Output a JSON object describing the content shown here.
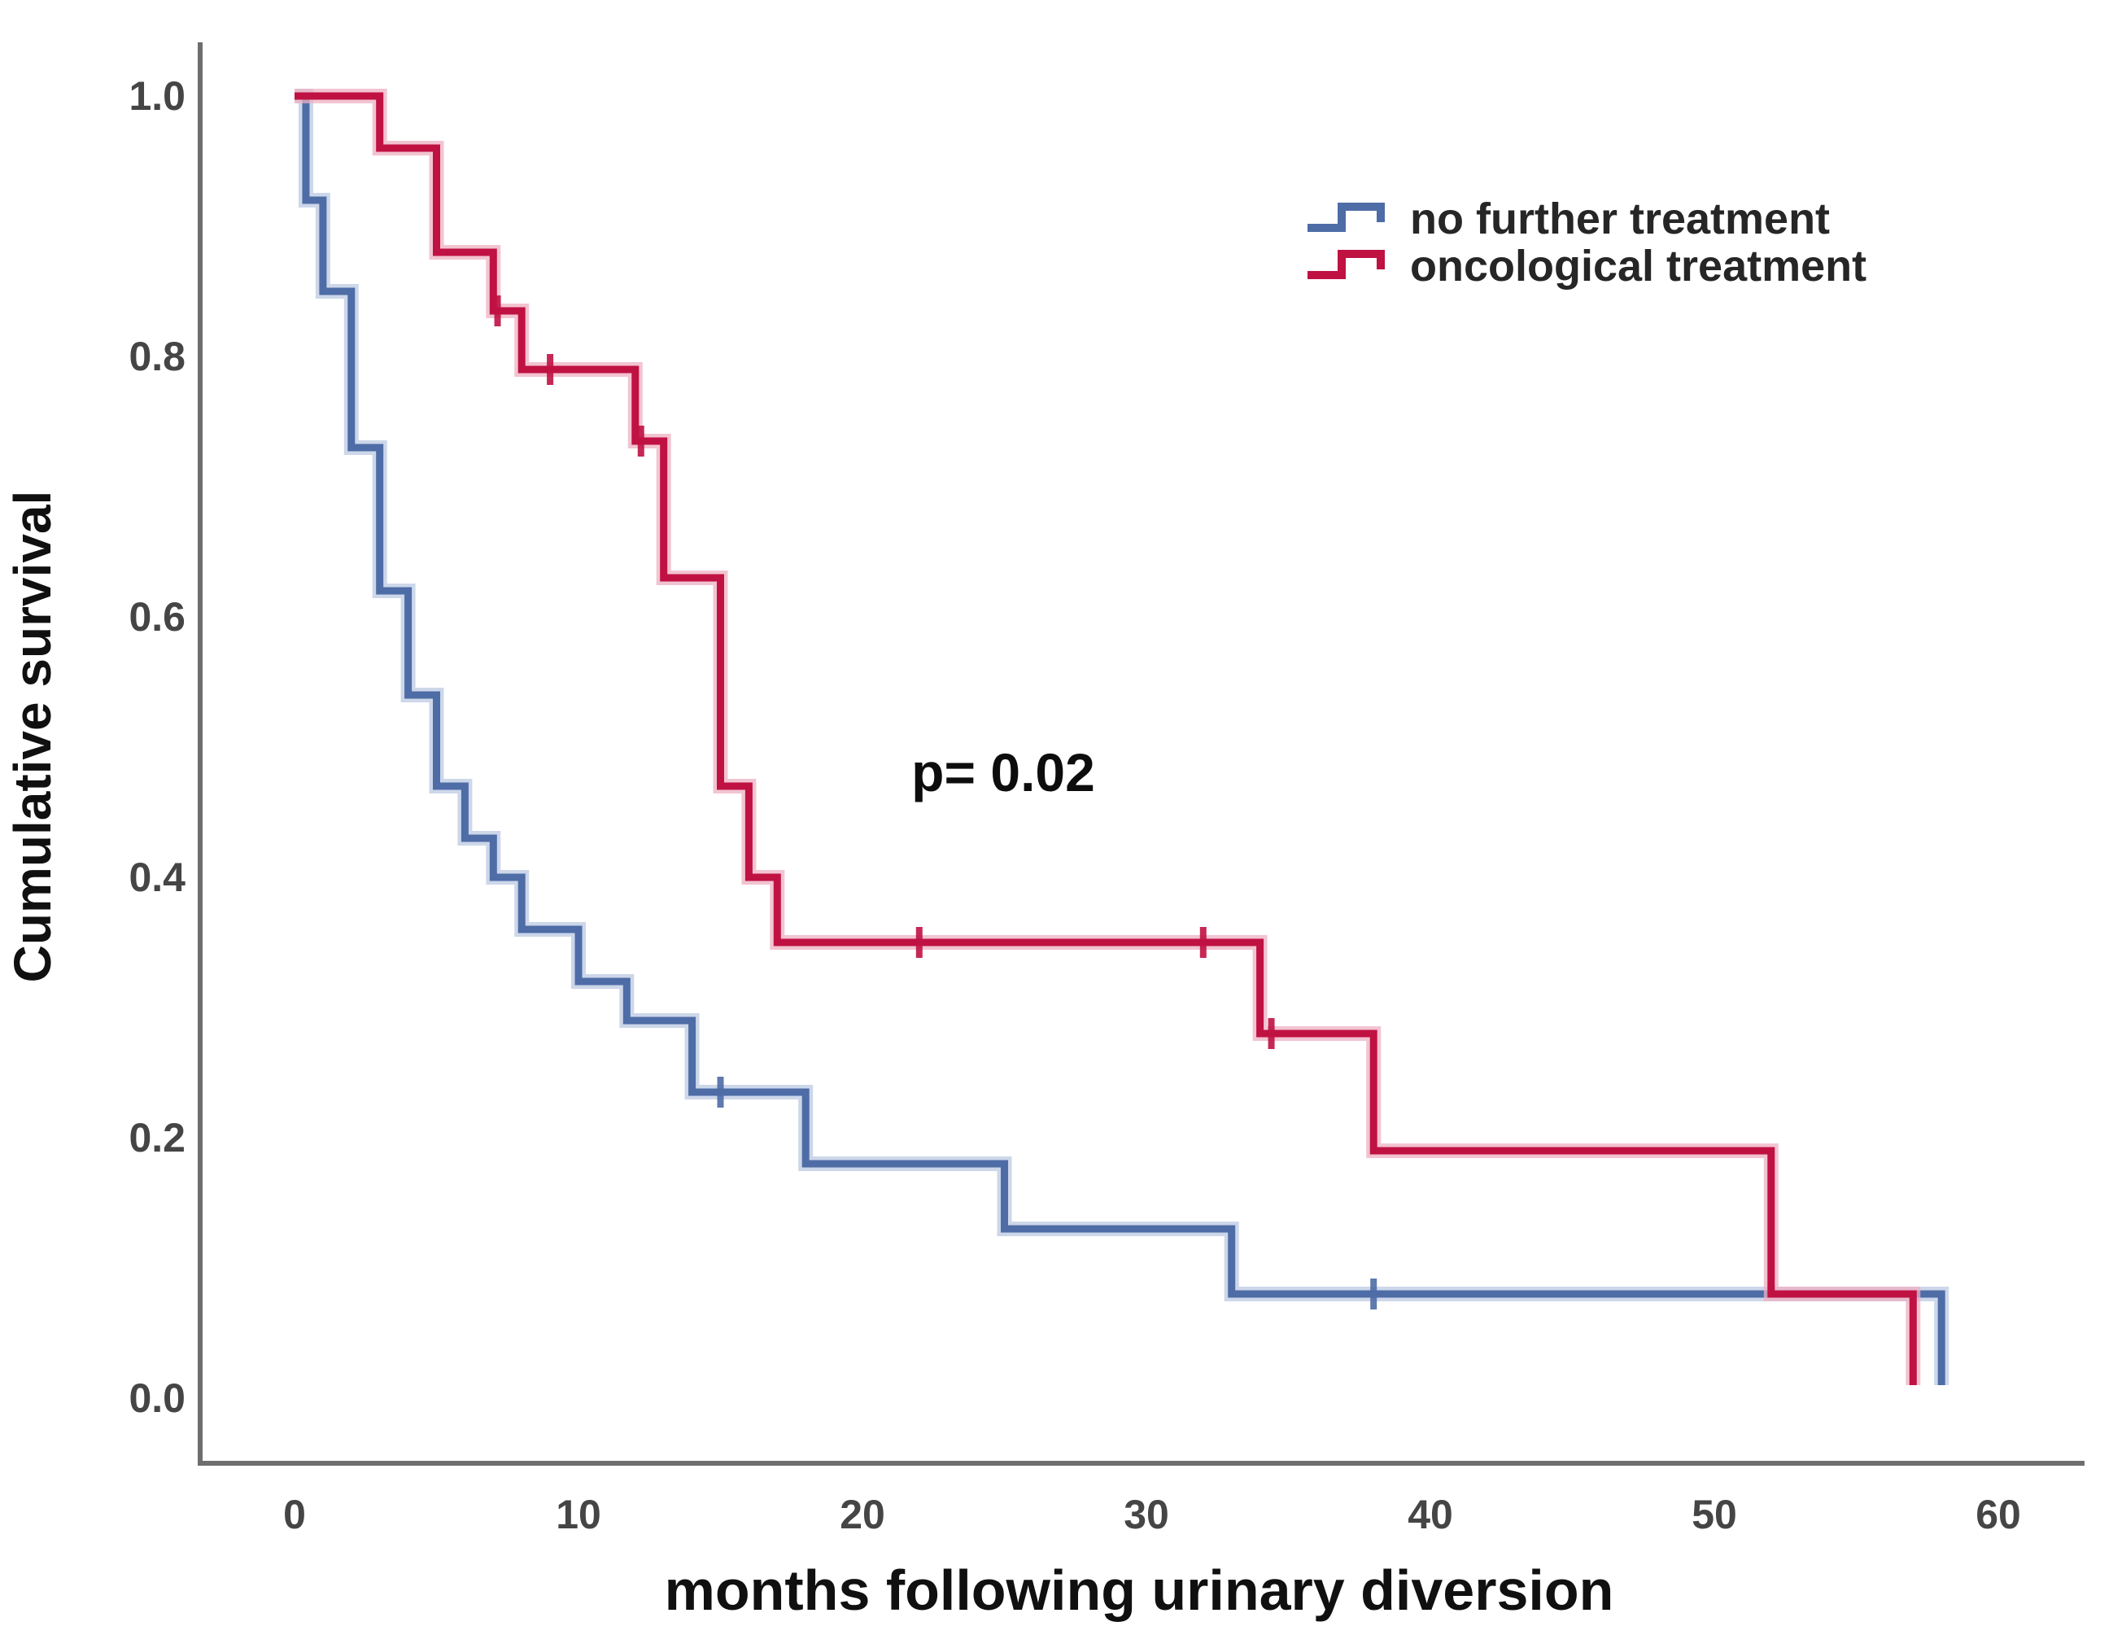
{
  "figure": {
    "background_color": "#ffffff",
    "axis_color": "#6e6e6e",
    "title_text_color": "#101010",
    "tick_text_color": "#454545",
    "p_value_label": "p= 0.02",
    "y_axis": {
      "title": "Cumulative survival",
      "tick_labels": [
        "0.0",
        "0.2",
        "0.4",
        "0.6",
        "0.8",
        "1.0"
      ],
      "tick_values": [
        0,
        0.2,
        0.4,
        0.6,
        0.8,
        1.0
      ]
    },
    "x_axis": {
      "title": "months following urinary diversion",
      "tick_labels": [
        "0",
        "10",
        "20",
        "30",
        "40",
        "50",
        "60"
      ],
      "tick_values": [
        0,
        10,
        20,
        30,
        40,
        50,
        60
      ]
    },
    "legend": {
      "position": "upper-right",
      "items": [
        {
          "label": "no further treatment",
          "color": "#4e6ca6",
          "halo": "#bcc9e3"
        },
        {
          "label": "oncological treatment",
          "color": "#c01143",
          "halo": "#eeb0c2"
        }
      ]
    }
  },
  "chart_data": {
    "type": "line",
    "subtype": "kaplan-meier-step",
    "title": "",
    "xlabel": "months following urinary diversion",
    "ylabel": "Cumulative survival",
    "xlim": [
      0,
      60
    ],
    "ylim": [
      0,
      1
    ],
    "x_ticks": [
      0,
      10,
      20,
      30,
      40,
      50,
      60
    ],
    "y_ticks": [
      0,
      0.2,
      0.4,
      0.6,
      0.8,
      1.0
    ],
    "grid": false,
    "legend_position": "upper right",
    "annotation": {
      "text": "p= 0.02",
      "x": 25,
      "y": 0.48
    },
    "series": [
      {
        "name": "no further treatment",
        "color": "#4e6ca6",
        "halo_color": "#bcc9e3",
        "steps": [
          [
            0,
            1.0
          ],
          [
            0.4,
            0.92
          ],
          [
            1,
            0.85
          ],
          [
            2,
            0.73
          ],
          [
            3,
            0.62
          ],
          [
            4,
            0.54
          ],
          [
            5,
            0.47
          ],
          [
            6,
            0.43
          ],
          [
            7,
            0.4
          ],
          [
            8,
            0.36
          ],
          [
            10,
            0.32
          ],
          [
            11.7,
            0.29
          ],
          [
            14,
            0.235
          ],
          [
            18,
            0.18
          ],
          [
            25,
            0.13
          ],
          [
            33,
            0.08
          ],
          [
            58,
            0.01
          ]
        ],
        "censored": [
          [
            15,
            0.235
          ],
          [
            38,
            0.08
          ]
        ]
      },
      {
        "name": "oncological treatment",
        "color": "#c01143",
        "halo_color": "#eeb0c2",
        "steps": [
          [
            0,
            1.0
          ],
          [
            3,
            0.96
          ],
          [
            5,
            0.88
          ],
          [
            7,
            0.835
          ],
          [
            8,
            0.79
          ],
          [
            12,
            0.735
          ],
          [
            13,
            0.63
          ],
          [
            15,
            0.47
          ],
          [
            16,
            0.4
          ],
          [
            17,
            0.35
          ],
          [
            34,
            0.28
          ],
          [
            38,
            0.19
          ],
          [
            52,
            0.08
          ],
          [
            57,
            0.01
          ]
        ],
        "censored": [
          [
            7.15,
            0.835
          ],
          [
            9,
            0.79
          ],
          [
            12.2,
            0.735
          ],
          [
            22,
            0.35
          ],
          [
            32,
            0.35
          ],
          [
            34.4,
            0.28
          ]
        ]
      }
    ]
  }
}
